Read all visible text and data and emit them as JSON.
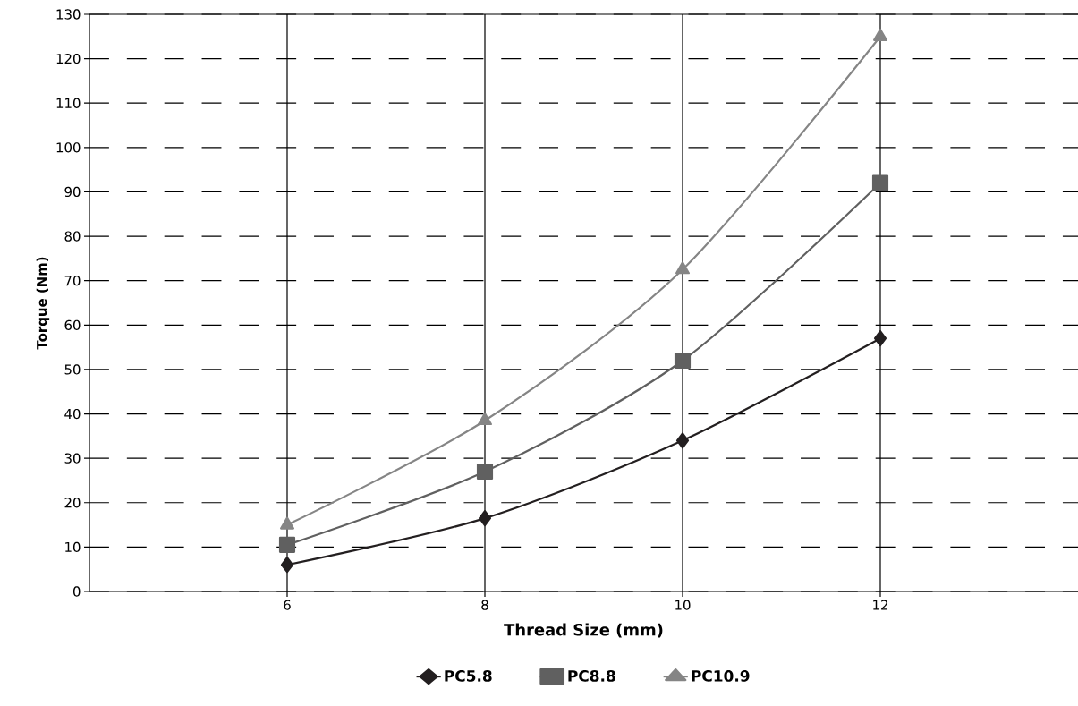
{
  "chart_data": {
    "type": "line",
    "xlabel": "Thread Size (mm)",
    "ylabel": "Torque (Nm)",
    "x": [
      6,
      8,
      10,
      12
    ],
    "series": [
      {
        "name": "PC5.8",
        "color": "#231f20",
        "marker": "diamond",
        "values": [
          6,
          16.5,
          34,
          57
        ]
      },
      {
        "name": "PC8.8",
        "color": "#606060",
        "marker": "square",
        "values": [
          10.5,
          27,
          52,
          92
        ]
      },
      {
        "name": "PC10.9",
        "color": "#858585",
        "marker": "triangle",
        "values": [
          15,
          38.5,
          72.5,
          125
        ]
      }
    ],
    "xlim": [
      4,
      14
    ],
    "xticks": [
      6,
      8,
      10,
      12
    ],
    "ylim": [
      0,
      130
    ],
    "yticks": [
      0,
      10,
      20,
      30,
      40,
      50,
      60,
      70,
      80,
      90,
      100,
      110,
      120,
      130
    ],
    "grid": true,
    "legend": "bottom",
    "line_style": "solid"
  }
}
